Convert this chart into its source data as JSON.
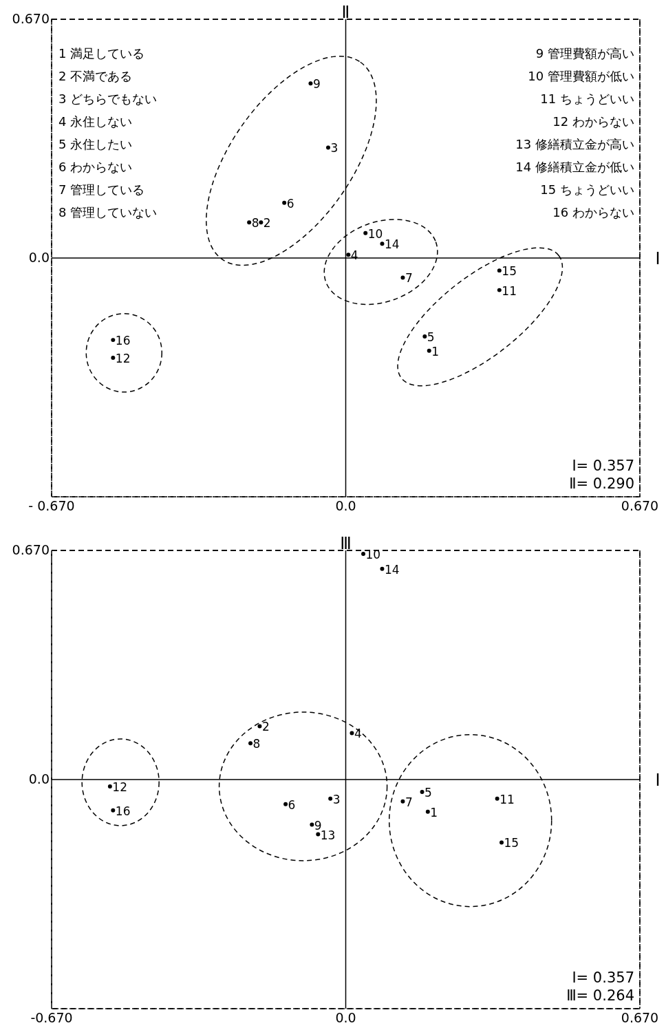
{
  "chart_data": [
    {
      "type": "scatter",
      "xlabel": "Ⅰ",
      "ylabel": "Ⅱ",
      "xlim": [
        -0.67,
        0.67
      ],
      "ylim": [
        -0.67,
        0.67
      ],
      "xticks": [
        {
          "value": -0.67,
          "label": "- 0.670"
        },
        {
          "value": 0,
          "label": "0.0"
        },
        {
          "value": 0.67,
          "label": "0.670"
        }
      ],
      "yticks": [
        {
          "value": -0.67,
          "label": null
        },
        {
          "value": 0,
          "label": "0.0"
        },
        {
          "value": 0.67,
          "label": "0.670"
        }
      ],
      "grid": true,
      "marker": "circle",
      "x": [
        0.19,
        -0.193,
        -0.04,
        0.006,
        0.18,
        -0.14,
        0.13,
        -0.22,
        -0.08,
        0.045,
        0.35,
        -0.53,
        0.083,
        0.35,
        -0.53
      ],
      "series": [
        {
          "color": "#000000",
          "values": [
            -0.26,
            0.1,
            0.31,
            0.009,
            -0.22,
            0.155,
            -0.055,
            0.1,
            0.49,
            0.07,
            -0.09,
            -0.28,
            0.04,
            -0.035,
            -0.23
          ]
        }
      ],
      "annotations": [
        "1 満足している",
        "2 不満である",
        "3 どちらでもない",
        "4 永住しない",
        "5 永住したい",
        "6 わからない",
        "7 管理している",
        "8 管理していない",
        "9 管理費額が高い",
        "10 管理費額が低い",
        "11 ちょうどいい",
        "12 わからない",
        "13 修繕積立金が高い",
        "14 修繕積立金が低い",
        "15 ちょうどいい",
        "16 わからない",
        "Ⅰ= 0.357",
        "Ⅱ= 0.290",
        {
          "text": "1",
          "x": 0.19,
          "y": -0.26
        },
        {
          "text": "2",
          "x": -0.193,
          "y": 0.1
        },
        {
          "text": "3",
          "x": -0.04,
          "y": 0.31
        },
        {
          "text": "4",
          "x": 0.006,
          "y": 0.009
        },
        {
          "text": "5",
          "x": 0.18,
          "y": -0.22
        },
        {
          "text": "6",
          "x": -0.14,
          "y": 0.155
        },
        {
          "text": "7",
          "x": 0.13,
          "y": -0.055
        },
        {
          "text": "8",
          "x": -0.22,
          "y": 0.1
        },
        {
          "text": "9",
          "x": -0.08,
          "y": 0.49
        },
        {
          "text": "10",
          "x": 0.045,
          "y": 0.07
        },
        {
          "text": "11",
          "x": 0.35,
          "y": -0.09
        },
        {
          "text": "12",
          "x": -0.53,
          "y": -0.28
        },
        {
          "text": "14",
          "x": 0.083,
          "y": 0.04
        },
        {
          "text": "15",
          "x": 0.35,
          "y": -0.035
        },
        {
          "text": "16",
          "x": -0.53,
          "y": -0.23
        }
      ]
    },
    {
      "type": "scatter",
      "xlabel": "Ⅰ",
      "ylabel": "Ⅲ",
      "xlim": [
        -0.67,
        0.67
      ],
      "ylim": [
        -0.67,
        0.67
      ],
      "xticks": [
        {
          "value": -0.67,
          "label": "-0.670"
        },
        {
          "value": 0,
          "label": "0.0"
        },
        {
          "value": 0.67,
          "label": "0.670"
        }
      ],
      "yticks": [
        {
          "value": -0.67,
          "label": null
        },
        {
          "value": 0,
          "label": "0.0"
        },
        {
          "value": 0.67,
          "label": "0.670"
        }
      ],
      "grid": true,
      "marker": "circle",
      "x": [
        0.187,
        -0.196,
        -0.035,
        0.014,
        0.174,
        -0.137,
        0.13,
        -0.217,
        -0.077,
        0.04,
        0.345,
        -0.537,
        -0.063,
        0.083,
        0.355,
        -0.53
      ],
      "series": [
        {
          "color": "#000000",
          "values": [
            -0.094,
            0.156,
            -0.056,
            0.136,
            -0.036,
            -0.072,
            -0.064,
            0.106,
            -0.132,
            0.66,
            -0.056,
            -0.02,
            -0.16,
            0.616,
            -0.184,
            -0.09
          ]
        }
      ],
      "annotations": [
        "Ⅰ= 0.357",
        "Ⅲ= 0.264",
        {
          "text": "1",
          "x": 0.187,
          "y": -0.094
        },
        {
          "text": "2",
          "x": -0.196,
          "y": 0.156
        },
        {
          "text": "3",
          "x": -0.035,
          "y": -0.056
        },
        {
          "text": "4",
          "x": 0.014,
          "y": 0.136
        },
        {
          "text": "5",
          "x": 0.174,
          "y": -0.036
        },
        {
          "text": "6",
          "x": -0.137,
          "y": -0.072
        },
        {
          "text": "7",
          "x": 0.13,
          "y": -0.064
        },
        {
          "text": "8",
          "x": -0.217,
          "y": 0.106
        },
        {
          "text": "9",
          "x": -0.077,
          "y": -0.132
        },
        {
          "text": "10",
          "x": 0.04,
          "y": 0.66
        },
        {
          "text": "11",
          "x": 0.345,
          "y": -0.056
        },
        {
          "text": "12",
          "x": -0.537,
          "y": -0.02
        },
        {
          "text": "13",
          "x": -0.063,
          "y": -0.16
        },
        {
          "text": "14",
          "x": 0.083,
          "y": 0.616
        },
        {
          "text": "15",
          "x": 0.355,
          "y": -0.184
        },
        {
          "text": "16",
          "x": -0.53,
          "y": -0.09
        }
      ]
    }
  ]
}
